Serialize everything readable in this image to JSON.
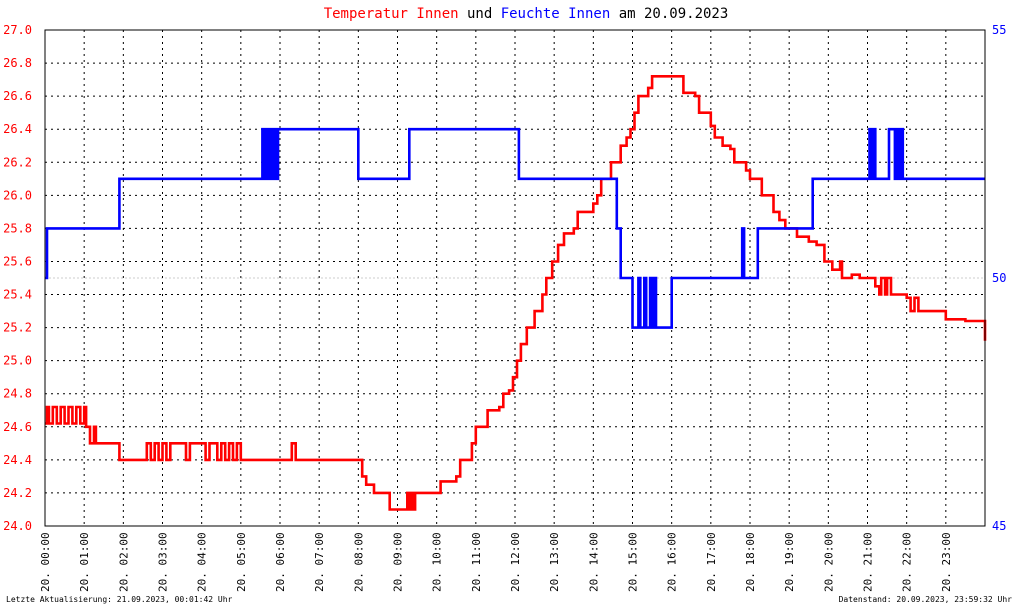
{
  "chart_data": {
    "type": "line",
    "title_parts": [
      {
        "text": "Temperatur Innen",
        "color": "#ff0000"
      },
      {
        "text": " und ",
        "color": "#000000"
      },
      {
        "text": "Feuchte Innen",
        "color": "#0000ff"
      },
      {
        "text": " am 20.09.2023",
        "color": "#000000"
      }
    ],
    "y_left": {
      "min": 24.0,
      "max": 27.0,
      "step": 0.2,
      "color": "#ff0000"
    },
    "y_right": {
      "min": 45,
      "max": 55,
      "ticks": [
        45,
        50,
        55
      ],
      "color": "#0000ff"
    },
    "x_range": [
      0,
      24
    ],
    "x_tick_labels": [
      "20. 00:00",
      "20. 01:00",
      "20. 02:00",
      "20. 03:00",
      "20. 04:00",
      "20. 05:00",
      "20. 06:00",
      "20. 07:00",
      "20. 08:00",
      "20. 09:00",
      "20. 10:00",
      "20. 11:00",
      "20. 12:00",
      "20. 13:00",
      "20. 14:00",
      "20. 15:00",
      "20. 16:00",
      "20. 17:00",
      "20. 18:00",
      "20. 19:00",
      "20. 20:00",
      "20. 21:00",
      "20. 22:00",
      "20. 23:00"
    ],
    "grid": true,
    "series": [
      {
        "name": "Temperatur Innen",
        "color": "#ff0000",
        "axis": "left",
        "points": [
          [
            0,
            24.62
          ],
          [
            0.05,
            24.72
          ],
          [
            0.1,
            24.62
          ],
          [
            0.2,
            24.72
          ],
          [
            0.3,
            24.62
          ],
          [
            0.4,
            24.72
          ],
          [
            0.5,
            24.62
          ],
          [
            0.6,
            24.72
          ],
          [
            0.7,
            24.62
          ],
          [
            0.8,
            24.72
          ],
          [
            0.9,
            24.62
          ],
          [
            1.0,
            24.72
          ],
          [
            1.05,
            24.6
          ],
          [
            1.1,
            24.6
          ],
          [
            1.15,
            24.5
          ],
          [
            1.25,
            24.6
          ],
          [
            1.3,
            24.5
          ],
          [
            1.4,
            24.5
          ],
          [
            1.5,
            24.5
          ],
          [
            1.8,
            24.5
          ],
          [
            1.9,
            24.4
          ],
          [
            2.5,
            24.4
          ],
          [
            2.6,
            24.5
          ],
          [
            2.7,
            24.4
          ],
          [
            2.8,
            24.5
          ],
          [
            2.9,
            24.4
          ],
          [
            3.0,
            24.5
          ],
          [
            3.1,
            24.4
          ],
          [
            3.2,
            24.5
          ],
          [
            3.5,
            24.5
          ],
          [
            3.6,
            24.4
          ],
          [
            3.7,
            24.5
          ],
          [
            4.0,
            24.5
          ],
          [
            4.1,
            24.4
          ],
          [
            4.2,
            24.5
          ],
          [
            4.4,
            24.4
          ],
          [
            4.5,
            24.5
          ],
          [
            4.6,
            24.4
          ],
          [
            4.7,
            24.5
          ],
          [
            4.8,
            24.4
          ],
          [
            4.9,
            24.5
          ],
          [
            5.0,
            24.4
          ],
          [
            5.2,
            24.4
          ],
          [
            6.2,
            24.4
          ],
          [
            6.3,
            24.5
          ],
          [
            6.4,
            24.4
          ],
          [
            7.0,
            24.4
          ],
          [
            8.0,
            24.4
          ],
          [
            8.1,
            24.3
          ],
          [
            8.2,
            24.25
          ],
          [
            8.4,
            24.2
          ],
          [
            8.7,
            24.2
          ],
          [
            8.8,
            24.1
          ],
          [
            9.2,
            24.1
          ],
          [
            9.25,
            24.2
          ],
          [
            9.3,
            24.1
          ],
          [
            9.35,
            24.2
          ],
          [
            9.4,
            24.1
          ],
          [
            9.45,
            24.2
          ],
          [
            9.5,
            24.2
          ],
          [
            10.0,
            24.2
          ],
          [
            10.1,
            24.27
          ],
          [
            10.5,
            24.3
          ],
          [
            10.6,
            24.4
          ],
          [
            10.9,
            24.5
          ],
          [
            11.0,
            24.6
          ],
          [
            11.2,
            24.6
          ],
          [
            11.3,
            24.7
          ],
          [
            11.6,
            24.72
          ],
          [
            11.7,
            24.8
          ],
          [
            11.85,
            24.82
          ],
          [
            11.95,
            24.9
          ],
          [
            12.05,
            25.0
          ],
          [
            12.15,
            25.1
          ],
          [
            12.3,
            25.2
          ],
          [
            12.5,
            25.3
          ],
          [
            12.6,
            25.3
          ],
          [
            12.7,
            25.4
          ],
          [
            12.8,
            25.5
          ],
          [
            12.95,
            25.6
          ],
          [
            13.1,
            25.7
          ],
          [
            13.25,
            25.77
          ],
          [
            13.5,
            25.8
          ],
          [
            13.6,
            25.9
          ],
          [
            14.0,
            25.95
          ],
          [
            14.1,
            26.0
          ],
          [
            14.2,
            26.1
          ],
          [
            14.4,
            26.1
          ],
          [
            14.45,
            26.2
          ],
          [
            14.6,
            26.2
          ],
          [
            14.7,
            26.3
          ],
          [
            14.85,
            26.35
          ],
          [
            14.95,
            26.4
          ],
          [
            15.05,
            26.5
          ],
          [
            15.15,
            26.6
          ],
          [
            15.4,
            26.65
          ],
          [
            15.5,
            26.72
          ],
          [
            16.0,
            26.72
          ],
          [
            16.2,
            26.72
          ],
          [
            16.3,
            26.62
          ],
          [
            16.6,
            26.6
          ],
          [
            16.7,
            26.5
          ],
          [
            17.0,
            26.42
          ],
          [
            17.1,
            26.35
          ],
          [
            17.3,
            26.3
          ],
          [
            17.5,
            26.28
          ],
          [
            17.6,
            26.2
          ],
          [
            17.9,
            26.15
          ],
          [
            18.0,
            26.1
          ],
          [
            18.3,
            26.0
          ],
          [
            18.6,
            25.9
          ],
          [
            18.75,
            25.85
          ],
          [
            18.9,
            25.8
          ],
          [
            19.2,
            25.75
          ],
          [
            19.5,
            25.72
          ],
          [
            19.7,
            25.7
          ],
          [
            19.9,
            25.6
          ],
          [
            20.1,
            25.55
          ],
          [
            20.3,
            25.6
          ],
          [
            20.35,
            25.5
          ],
          [
            20.6,
            25.52
          ],
          [
            20.8,
            25.5
          ],
          [
            21.0,
            25.5
          ],
          [
            21.2,
            25.45
          ],
          [
            21.3,
            25.4
          ],
          [
            21.35,
            25.5
          ],
          [
            21.45,
            25.4
          ],
          [
            21.5,
            25.5
          ],
          [
            21.6,
            25.4
          ],
          [
            21.8,
            25.4
          ],
          [
            22.0,
            25.38
          ],
          [
            22.1,
            25.3
          ],
          [
            22.2,
            25.38
          ],
          [
            22.3,
            25.3
          ],
          [
            22.5,
            25.3
          ],
          [
            22.8,
            25.3
          ],
          [
            23.0,
            25.25
          ],
          [
            23.1,
            25.25
          ],
          [
            23.5,
            25.24
          ],
          [
            23.9,
            25.24
          ],
          [
            24.0,
            25.12
          ]
        ]
      },
      {
        "name": "Feuchte Innen",
        "color": "#0000ff",
        "axis": "right",
        "points": [
          [
            0,
            50
          ],
          [
            0.05,
            51
          ],
          [
            1.0,
            51
          ],
          [
            1.9,
            51
          ],
          [
            1.9,
            52
          ],
          [
            5.5,
            52
          ],
          [
            5.55,
            53
          ],
          [
            5.6,
            52
          ],
          [
            5.65,
            53
          ],
          [
            5.7,
            52
          ],
          [
            5.75,
            53
          ],
          [
            5.8,
            52
          ],
          [
            5.85,
            53
          ],
          [
            5.9,
            52
          ],
          [
            5.95,
            53
          ],
          [
            6.0,
            53
          ],
          [
            8.0,
            53
          ],
          [
            8.0,
            52
          ],
          [
            9.3,
            52
          ],
          [
            9.3,
            53
          ],
          [
            12.1,
            53
          ],
          [
            12.1,
            52
          ],
          [
            14.5,
            52
          ],
          [
            14.6,
            52
          ],
          [
            14.6,
            51
          ],
          [
            14.7,
            51
          ],
          [
            14.7,
            50
          ],
          [
            15.0,
            50
          ],
          [
            15.0,
            49
          ],
          [
            15.15,
            50
          ],
          [
            15.2,
            49
          ],
          [
            15.3,
            50
          ],
          [
            15.35,
            49
          ],
          [
            15.45,
            50
          ],
          [
            15.5,
            49
          ],
          [
            15.55,
            50
          ],
          [
            15.6,
            49
          ],
          [
            16.0,
            49
          ],
          [
            16.0,
            50
          ],
          [
            17.8,
            50
          ],
          [
            17.8,
            51
          ],
          [
            17.85,
            50
          ],
          [
            18.0,
            50
          ],
          [
            18.2,
            50
          ],
          [
            18.2,
            51
          ],
          [
            19.6,
            51
          ],
          [
            19.6,
            52
          ],
          [
            21.0,
            52
          ],
          [
            21.05,
            53
          ],
          [
            21.1,
            52
          ],
          [
            21.15,
            53
          ],
          [
            21.2,
            52
          ],
          [
            21.5,
            52
          ],
          [
            21.55,
            53
          ],
          [
            21.6,
            53
          ],
          [
            21.7,
            52
          ],
          [
            21.75,
            53
          ],
          [
            21.8,
            52
          ],
          [
            21.85,
            53
          ],
          [
            21.9,
            52
          ],
          [
            22.0,
            52
          ],
          [
            24.0,
            52
          ]
        ]
      }
    ],
    "footer_left": "Letzte Aktualisierung: 21.09.2023, 00:01:42 Uhr",
    "footer_right": "Datenstand: 20.09.2023, 23:59:32 Uhr"
  }
}
